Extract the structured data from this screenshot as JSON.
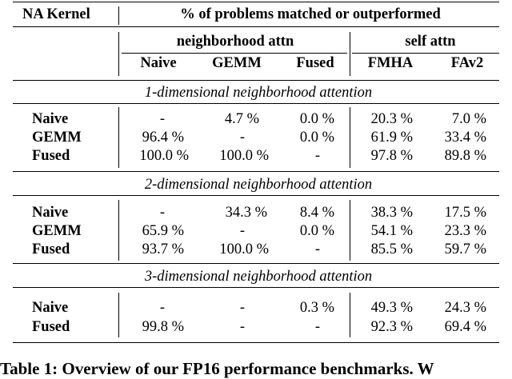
{
  "table": {
    "header": {
      "kernel_col": "NA Kernel",
      "metric": "% of problems matched or outperformed",
      "group_neighborhood": "neighborhood attn",
      "group_self": "self attn",
      "cols": [
        "Naive",
        "GEMM",
        "Fused",
        "FMHA",
        "FAv2"
      ]
    },
    "sections": [
      {
        "title": "1-dimensional neighborhood attention",
        "rows": [
          {
            "label": "Naive",
            "cells": [
              "-",
              "4.7 %",
              "0.0 %",
              "20.3 %",
              "7.0 %"
            ]
          },
          {
            "label": "GEMM",
            "cells": [
              "96.4 %",
              "-",
              "0.0 %",
              "61.9 %",
              "33.4 %"
            ]
          },
          {
            "label": "Fused",
            "cells": [
              "100.0 %",
              "100.0 %",
              "-",
              "97.8 %",
              "89.8 %"
            ]
          }
        ]
      },
      {
        "title": "2-dimensional neighborhood attention",
        "rows": [
          {
            "label": "Naive",
            "cells": [
              "-",
              "34.3 %",
              "8.4 %",
              "38.3 %",
              "17.5 %"
            ]
          },
          {
            "label": "GEMM",
            "cells": [
              "65.9 %",
              "-",
              "0.0 %",
              "54.1 %",
              "23.3 %"
            ]
          },
          {
            "label": "Fused",
            "cells": [
              "93.7 %",
              "100.0 %",
              "-",
              "85.5 %",
              "59.7 %"
            ]
          }
        ]
      },
      {
        "title": "3-dimensional neighborhood attention",
        "rows": [
          {
            "label": "Naive",
            "cells": [
              "-",
              "-",
              "0.3 %",
              "49.3 %",
              "24.3 %"
            ]
          },
          {
            "label": "Fused",
            "cells": [
              "99.8 %",
              "-",
              "-",
              "92.3 %",
              "69.4 %"
            ]
          }
        ]
      }
    ]
  },
  "caption": "Table 1: Overview of our FP16 performance benchmarks. W"
}
